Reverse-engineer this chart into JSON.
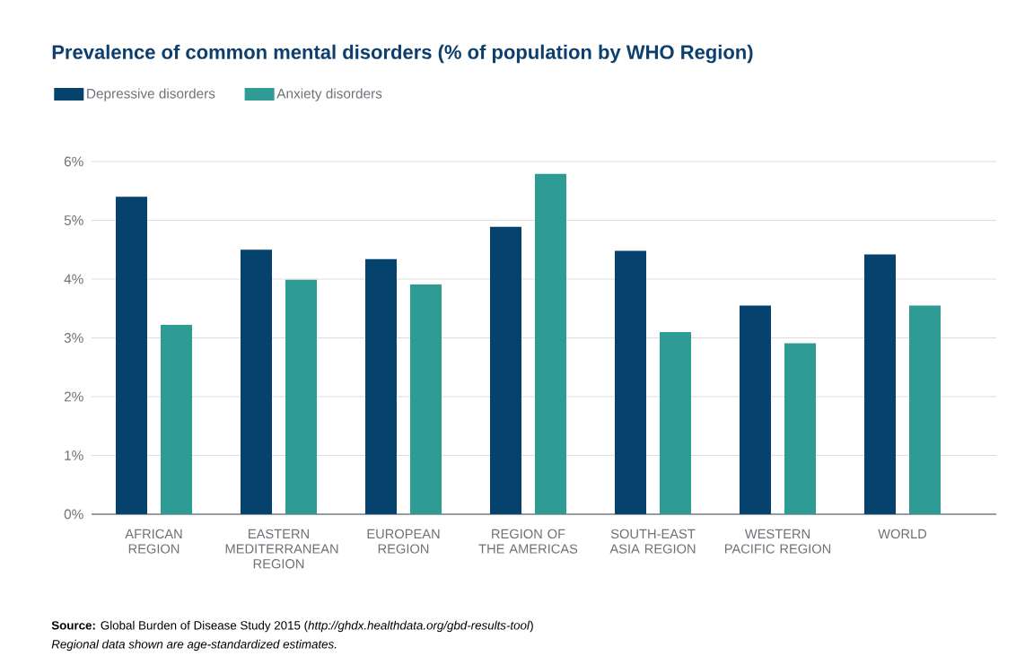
{
  "chart_data": {
    "type": "bar",
    "title": "Prevalence of common mental disorders (% of population by WHO Region)",
    "categories": [
      "AFRICAN REGION",
      "EASTERN MEDITERRANEAN REGION",
      "EUROPEAN REGION",
      "REGION OF THE AMERICAS",
      "SOUTH-EAST ASIA REGION",
      "WESTERN PACIFIC REGION",
      "WORLD"
    ],
    "series": [
      {
        "name": "Depressive disorders",
        "color": "#05426e",
        "values": [
          5.4,
          4.5,
          4.34,
          4.89,
          4.48,
          3.55,
          4.42
        ]
      },
      {
        "name": "Anxiety disorders",
        "color": "#2e9c94",
        "values": [
          3.22,
          3.99,
          3.91,
          5.79,
          3.1,
          2.91,
          3.55
        ]
      }
    ],
    "ylim": [
      0,
      6
    ],
    "yticks": [
      {
        "value": 0,
        "label": "0%"
      },
      {
        "value": 1,
        "label": "1%"
      },
      {
        "value": 2,
        "label": "2%"
      },
      {
        "value": 3,
        "label": "3%"
      },
      {
        "value": 4,
        "label": "4%"
      },
      {
        "value": 5,
        "label": "5%"
      },
      {
        "value": 6,
        "label": "6%"
      }
    ],
    "grid": "y",
    "legend": "top left",
    "annotations": [
      "**Source:**  Global Burden of Disease Study 2015 (*http://ghdx.healthdata.org/gbd-results-tool*)",
      "Regional data shown are age-standardized estimates."
    ]
  }
}
